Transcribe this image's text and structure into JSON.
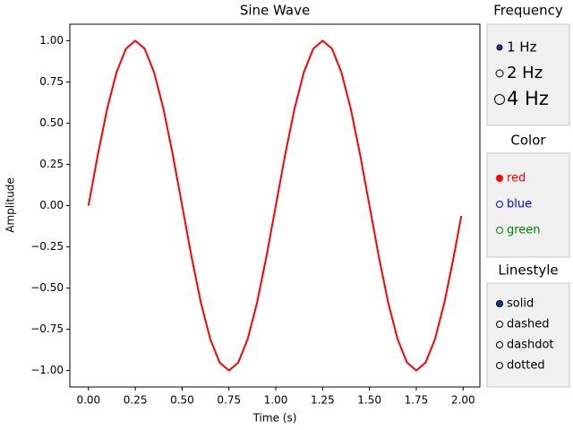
{
  "chart_data": {
    "type": "line",
    "title": "Sine Wave",
    "x_label": "Time (s)",
    "y_label": "Amplitude",
    "x": [
      0,
      0.05,
      0.1,
      0.15,
      0.2,
      0.25,
      0.3,
      0.35,
      0.4,
      0.45,
      0.5,
      0.55,
      0.6,
      0.65,
      0.7,
      0.75,
      0.8,
      0.85,
      0.9,
      0.95,
      1.0,
      1.05,
      1.1,
      1.15,
      1.2,
      1.25,
      1.3,
      1.35,
      1.4,
      1.45,
      1.5,
      1.55,
      1.6,
      1.65,
      1.7,
      1.75,
      1.8,
      1.85,
      1.9,
      1.95,
      1.99
    ],
    "series": [
      {
        "color": "#ff0000",
        "values": [
          0,
          0.309,
          0.588,
          0.809,
          0.951,
          1,
          0.951,
          0.809,
          0.588,
          0.309,
          0,
          -0.309,
          -0.588,
          -0.809,
          -0.951,
          -1,
          -0.951,
          -0.809,
          -0.588,
          -0.309,
          0,
          0.309,
          0.588,
          0.809,
          0.951,
          1,
          0.951,
          0.809,
          0.588,
          0.309,
          0,
          -0.309,
          -0.588,
          -0.809,
          -0.951,
          -1,
          -0.951,
          -0.809,
          -0.588,
          -0.309,
          -0.063
        ]
      }
    ],
    "xlim": [
      -0.0995,
      2.0895
    ],
    "ylim": [
      -1.1,
      1.1
    ],
    "xticks": [
      {
        "value": 0,
        "label": "0.00"
      },
      {
        "value": 0.25,
        "label": "0.25"
      },
      {
        "value": 0.5,
        "label": "0.50"
      },
      {
        "value": 0.75,
        "label": "0.75"
      },
      {
        "value": 1,
        "label": "1.00"
      },
      {
        "value": 1.25,
        "label": "1.25"
      },
      {
        "value": 1.5,
        "label": "1.50"
      },
      {
        "value": 1.75,
        "label": "1.75"
      },
      {
        "value": 2,
        "label": "2.00"
      }
    ],
    "yticks": [
      {
        "value": -1,
        "label": "−1.00"
      },
      {
        "value": -0.75,
        "label": "−0.75"
      },
      {
        "value": -0.5,
        "label": "−0.50"
      },
      {
        "value": -0.25,
        "label": "−0.25"
      },
      {
        "value": 0,
        "label": "0.00"
      },
      {
        "value": 0.25,
        "label": "0.25"
      },
      {
        "value": 0.5,
        "label": "0.50"
      },
      {
        "value": 0.75,
        "label": "0.75"
      },
      {
        "value": 1,
        "label": "1.00"
      }
    ]
  },
  "controls": [
    {
      "title": "Frequency",
      "options": [
        "1 Hz",
        "2 Hz",
        "4 Hz"
      ],
      "active": 0
    },
    {
      "title": "Color",
      "options": [
        "red",
        "blue",
        "green"
      ],
      "option_colors": [
        "#ff0000",
        "#0000ff",
        "#008000"
      ],
      "active": 0
    },
    {
      "title": "Linestyle",
      "options": [
        "solid",
        "dashed",
        "dashdot",
        "dotted"
      ],
      "active": 0
    }
  ]
}
